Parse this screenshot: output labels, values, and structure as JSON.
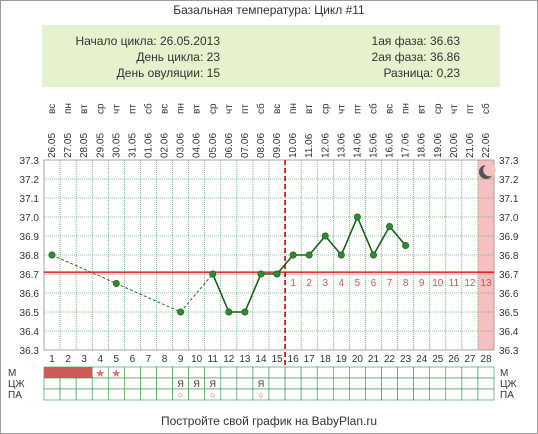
{
  "title": "Базальная температура: Цикл #11",
  "info": {
    "left": [
      {
        "label": "Начало цикла:",
        "value": "26.05.2013"
      },
      {
        "label": "День цикла:",
        "value": "23"
      },
      {
        "label": "День овуляции:",
        "value": "15"
      }
    ],
    "right": [
      {
        "label": "1ая фаза:",
        "value": "36.63"
      },
      {
        "label": "2ая фаза:",
        "value": "36.86"
      },
      {
        "label": "Разница:",
        "value": "0,23"
      }
    ]
  },
  "footer": "Постройте свой график на BabyPlan.ru",
  "chart_data": {
    "type": "line",
    "ylim": [
      36.3,
      37.3
    ],
    "y_ticks": [
      "37.3",
      "37.2",
      "37.1",
      "37.0",
      "36.9",
      "36.8",
      "36.7",
      "36.6",
      "36.5",
      "36.4",
      "36.3"
    ],
    "cycle_days": [
      "1",
      "2",
      "3",
      "4",
      "5",
      "6",
      "7",
      "8",
      "9",
      "10",
      "11",
      "12",
      "13",
      "14",
      "15",
      "16",
      "17",
      "18",
      "19",
      "20",
      "21",
      "22",
      "23",
      "24",
      "25",
      "26",
      "27",
      "28"
    ],
    "dates": [
      "26.05",
      "27.05",
      "28.05",
      "29.05",
      "30.05",
      "31.05",
      "01.06",
      "02.06",
      "03.06",
      "04.06",
      "05.06",
      "06.06",
      "07.06",
      "08.06",
      "09.06",
      "10.06",
      "11.06",
      "12.06",
      "13.06",
      "14.06",
      "15.06",
      "16.06",
      "17.06",
      "18.06",
      "19.06",
      "20.06",
      "21.06",
      "22.06"
    ],
    "weekdays": [
      "вс",
      "пн",
      "вт",
      "ср",
      "чт",
      "пт",
      "сб",
      "вс",
      "пн",
      "вт",
      "ср",
      "чт",
      "пт",
      "сб",
      "вс",
      "пн",
      "вт",
      "ср",
      "чт",
      "пт",
      "сб",
      "вс",
      "пн",
      "вт",
      "ср",
      "чт",
      "пт",
      "сб"
    ],
    "temperatures": [
      {
        "day": 1,
        "temp": 36.8
      },
      {
        "day": 5,
        "temp": 36.65
      },
      {
        "day": 9,
        "temp": 36.5
      },
      {
        "day": 11,
        "temp": 36.7
      },
      {
        "day": 12,
        "temp": 36.5
      },
      {
        "day": 13,
        "temp": 36.5
      },
      {
        "day": 14,
        "temp": 36.7
      },
      {
        "day": 15,
        "temp": 36.7
      },
      {
        "day": 16,
        "temp": 36.8
      },
      {
        "day": 17,
        "temp": 36.8
      },
      {
        "day": 18,
        "temp": 36.9
      },
      {
        "day": 19,
        "temp": 36.8
      },
      {
        "day": 20,
        "temp": 37.0
      },
      {
        "day": 21,
        "temp": 36.8
      },
      {
        "day": 22,
        "temp": 36.95
      },
      {
        "day": 23,
        "temp": 36.85
      }
    ],
    "coverline": 36.71,
    "ovulation_day": 15,
    "expected_period_day": 28,
    "phase2_labels": [
      "1",
      "2",
      "3",
      "4",
      "5",
      "6",
      "7",
      "8",
      "9",
      "10",
      "11",
      "12",
      "13"
    ],
    "rows": [
      {
        "label": "М",
        "menstruation_days": [
          1,
          2,
          3
        ],
        "star_days": [
          4,
          5
        ]
      },
      {
        "label": "ЦЖ",
        "marks": [
          {
            "day": 9,
            "text": "Я"
          },
          {
            "day": 10,
            "text": "Я"
          },
          {
            "day": 11,
            "text": "Я"
          },
          {
            "day": 14,
            "text": "Я"
          }
        ]
      },
      {
        "label": "ПА",
        "marks": [
          {
            "day": 9,
            "text": "○"
          },
          {
            "day": 11,
            "text": "○"
          },
          {
            "day": 14,
            "text": "○"
          }
        ]
      }
    ],
    "colors": {
      "line": "#1a5c1a",
      "marker": "#2e8b2e",
      "coverline": "#cc0000",
      "ovulation": "#cc0000",
      "period_band": "#f7c0c0",
      "menstruation": "#d05a5a",
      "grid": "#2f8f3f",
      "info_bg": "#e6f2cd"
    }
  }
}
